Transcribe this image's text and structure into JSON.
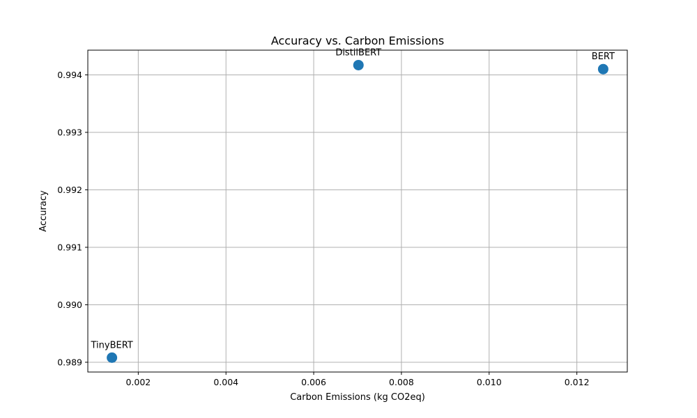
{
  "chart_data": {
    "type": "scatter",
    "title": "Accuracy vs. Carbon Emissions",
    "xlabel": "Carbon Emissions (kg CO2eq)",
    "ylabel": "Accuracy",
    "xlim": [
      0.00085,
      0.01315
    ],
    "ylim": [
      0.98883,
      0.99443
    ],
    "xticks": [
      0.002,
      0.004,
      0.006,
      0.008,
      0.01,
      0.012
    ],
    "xtick_labels": [
      "0.002",
      "0.004",
      "0.006",
      "0.008",
      "0.010",
      "0.012"
    ],
    "yticks": [
      0.989,
      0.99,
      0.991,
      0.992,
      0.993,
      0.994
    ],
    "ytick_labels": [
      "0.989",
      "0.990",
      "0.991",
      "0.992",
      "0.993",
      "0.994"
    ],
    "grid": true,
    "points": [
      {
        "label": "DistilBERT",
        "x": 0.00702,
        "y": 0.99417
      },
      {
        "label": "BERT",
        "x": 0.0126,
        "y": 0.9941
      },
      {
        "label": "TinyBERT",
        "x": 0.0014,
        "y": 0.98908
      }
    ],
    "marker_color": "#1f77b4"
  }
}
